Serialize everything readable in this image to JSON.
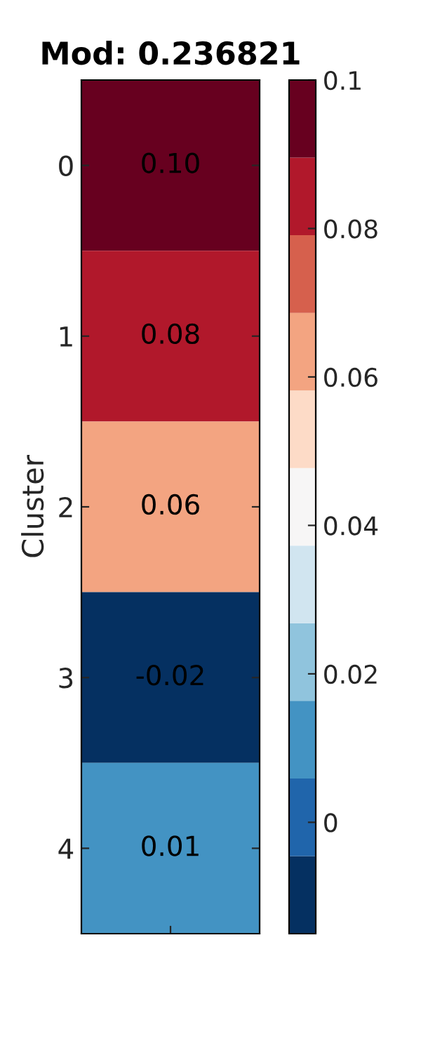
{
  "chart_data": {
    "type": "heatmap",
    "title": "Mod: 0.236821",
    "ylabel": "Cluster",
    "categories": [
      null
    ],
    "y_categories": [
      "0",
      "1",
      "2",
      "3",
      "4"
    ],
    "cells": [
      [
        0.1
      ],
      [
        0.08
      ],
      [
        0.06
      ],
      [
        -0.02
      ],
      [
        0.01
      ]
    ],
    "cell_labels": [
      [
        "0.10"
      ],
      [
        "0.08"
      ],
      [
        "0.06"
      ],
      [
        "-0.02"
      ],
      [
        "0.01"
      ]
    ],
    "clim": [
      -0.015,
      0.1
    ],
    "cticks": [
      0,
      0.02,
      0.04,
      0.06,
      0.08,
      0.1
    ]
  }
}
